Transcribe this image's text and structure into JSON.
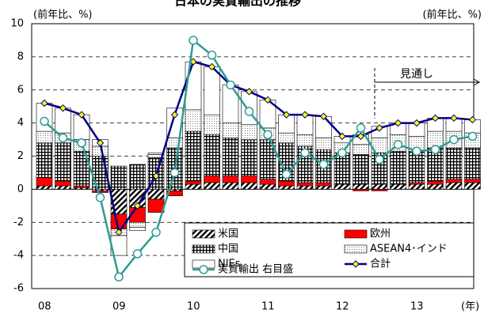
{
  "chart_data": {
    "type": "bar",
    "title": "日本の実質輸出の推移",
    "y_unit_left": "(前年比、%)",
    "y_unit_right": "(前年比、%)",
    "x_unit": "(年)",
    "annotation": "見通し",
    "categories": [
      "08",
      null,
      null,
      null,
      "09",
      null,
      null,
      null,
      "10",
      null,
      null,
      null,
      "11",
      null,
      null,
      null,
      "12",
      null,
      null,
      null,
      "13",
      null,
      null,
      null
    ],
    "ylim": [
      -6,
      10
    ],
    "yticks": [
      -6,
      -4,
      -2,
      0,
      2,
      4,
      6,
      8,
      10
    ],
    "grid": true,
    "series": [
      {
        "name": "米国",
        "color": "#000000",
        "pattern": "hatch",
        "values": [
          0.2,
          0.2,
          0.1,
          -0.1,
          -1.5,
          -1.1,
          -0.6,
          -0.1,
          0.3,
          0.4,
          0.4,
          0.4,
          0.3,
          0.2,
          0.2,
          0.2,
          0.3,
          0.3,
          0.3,
          0.3,
          0.3,
          0.3,
          0.4,
          0.4
        ]
      },
      {
        "name": "欧州",
        "color": "#ff0000",
        "pattern": "solid",
        "values": [
          0.5,
          0.3,
          0.1,
          -0.1,
          -0.9,
          -0.9,
          -0.8,
          -0.3,
          0.2,
          0.4,
          0.4,
          0.4,
          0.3,
          0.3,
          0.2,
          0.2,
          0.0,
          -0.1,
          -0.1,
          0.0,
          0.1,
          0.2,
          0.2,
          0.2
        ]
      },
      {
        "name": "中国",
        "color": "#000000",
        "pattern": "grid",
        "values": [
          2.1,
          2.3,
          2.1,
          2.0,
          1.4,
          1.5,
          1.9,
          2.5,
          3.0,
          2.5,
          2.3,
          2.2,
          2.4,
          2.3,
          2.2,
          2.0,
          1.9,
          1.8,
          1.9,
          2.0,
          1.9,
          2.0,
          1.9,
          1.9
        ]
      },
      {
        "name": "ASEAN4･インド",
        "color": "#000000",
        "pattern": "dots",
        "values": [
          0.7,
          0.6,
          0.7,
          0.6,
          -0.4,
          -0.3,
          0.2,
          0.6,
          1.3,
          1.2,
          0.9,
          0.9,
          0.7,
          0.6,
          0.7,
          0.7,
          0.6,
          0.6,
          0.9,
          1.0,
          0.9,
          1.0,
          1.0,
          0.9
        ]
      },
      {
        "name": "NIEs",
        "color": "#ffffff",
        "pattern": "solid",
        "values": [
          1.7,
          1.5,
          1.5,
          0.4,
          -1.2,
          -0.2,
          0.1,
          1.8,
          2.9,
          2.9,
          2.3,
          2.0,
          1.7,
          1.1,
          1.2,
          1.3,
          0.4,
          0.6,
          0.7,
          0.7,
          0.8,
          0.8,
          0.8,
          0.8
        ]
      },
      {
        "name": "合計",
        "type": "line",
        "color": "#000080",
        "marker": "diamond",
        "marker_color": "#ffff00",
        "values": [
          5.2,
          4.9,
          4.5,
          2.8,
          -2.6,
          -1.0,
          0.8,
          4.5,
          7.7,
          7.4,
          6.3,
          5.9,
          5.4,
          4.5,
          4.5,
          4.4,
          3.2,
          3.2,
          3.7,
          4.0,
          4.0,
          4.3,
          4.3,
          4.2
        ]
      },
      {
        "name": "実質輸出 右目盛",
        "type": "line",
        "color": "#2e9b94",
        "marker": "circle",
        "marker_color": "#ffffff",
        "values": [
          4.1,
          3.1,
          2.8,
          -0.5,
          -5.3,
          -3.9,
          -2.6,
          1.0,
          9.0,
          8.1,
          6.3,
          4.7,
          3.3,
          0.9,
          2.2,
          1.5,
          2.2,
          3.7,
          1.8,
          2.7,
          2.3,
          2.4,
          3.0,
          3.2
        ]
      }
    ]
  }
}
